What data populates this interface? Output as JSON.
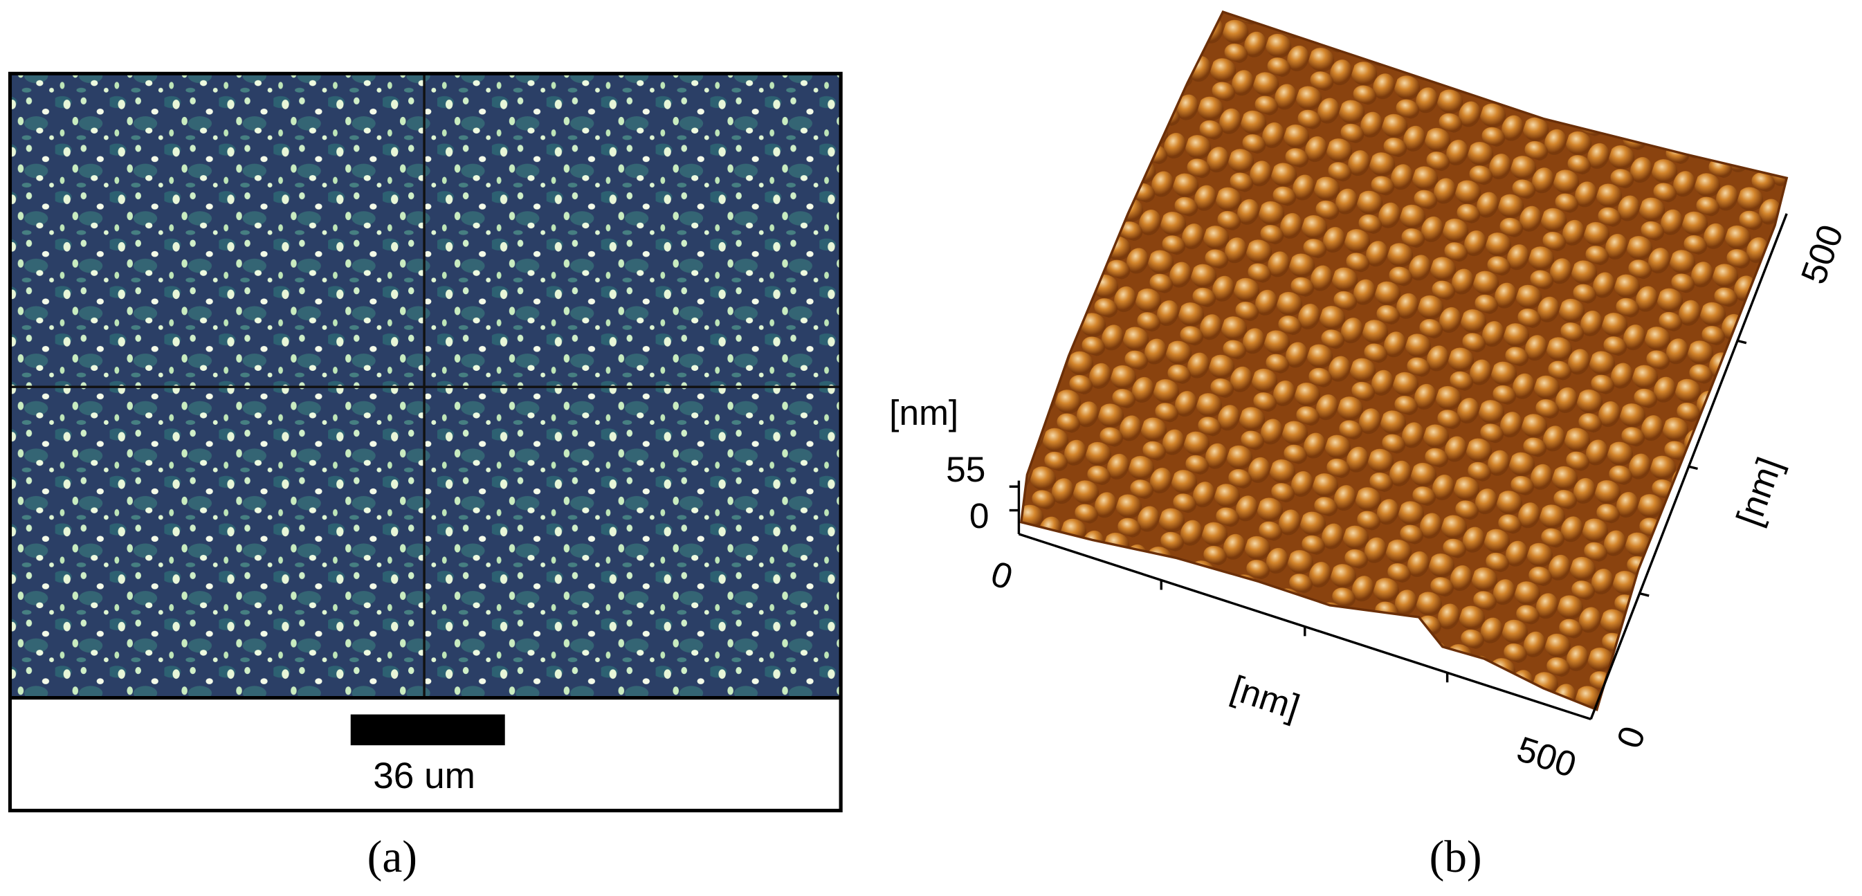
{
  "panel_a": {
    "scale_bar_label": "36 um",
    "caption": "(a)"
  },
  "panel_b": {
    "z_axis_label": "[nm]",
    "z_ticks": [
      "55",
      "0"
    ],
    "x_axis_label": "[nm]",
    "x_ticks": [
      "0",
      "500"
    ],
    "y_axis_label": "[nm]",
    "y_ticks": [
      "0",
      "500"
    ],
    "caption": "(b)"
  }
}
